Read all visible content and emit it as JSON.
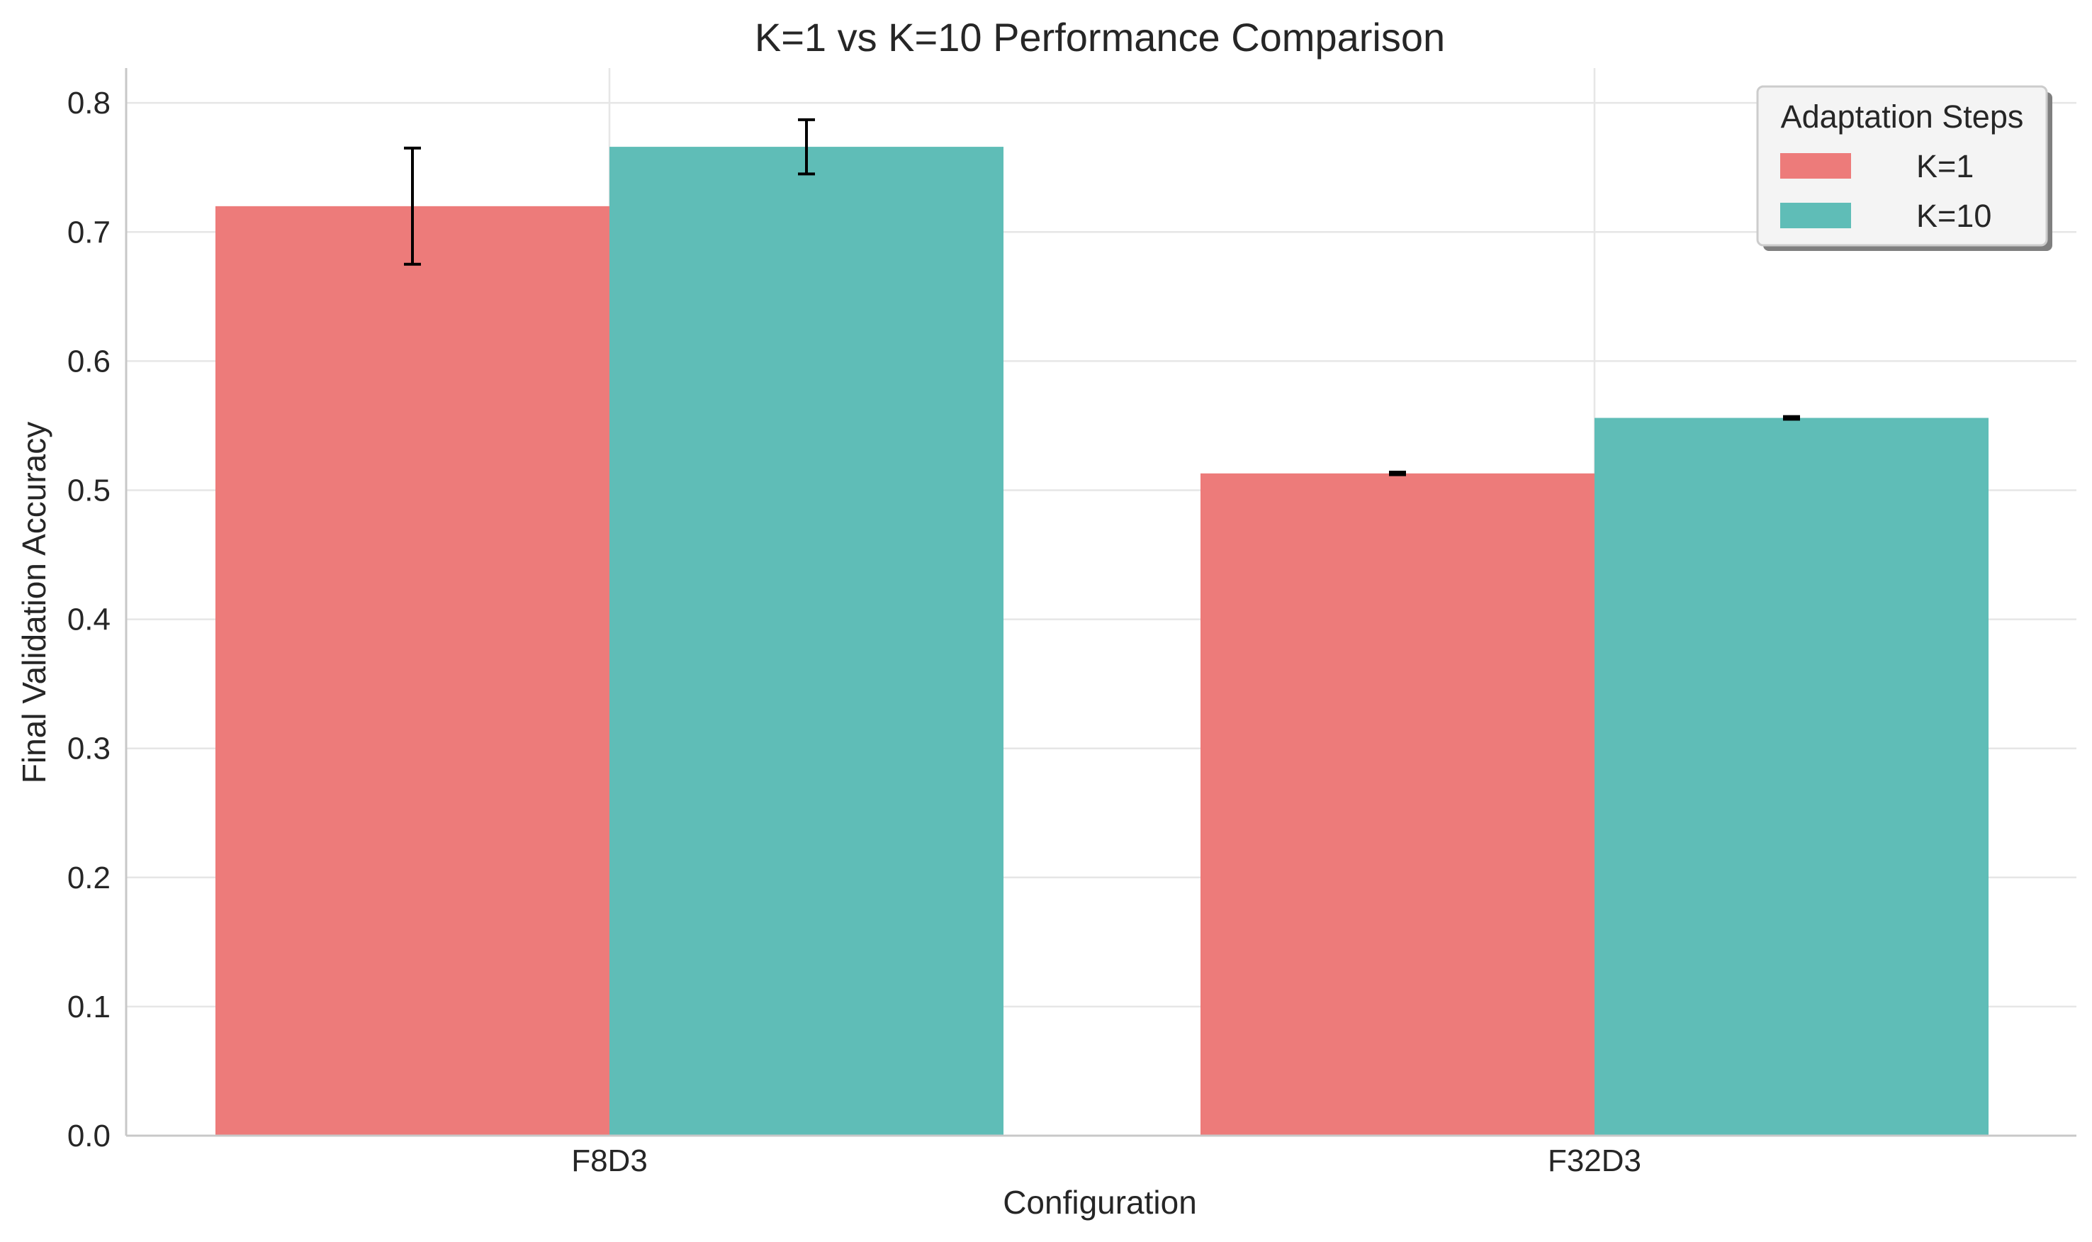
{
  "chart_data": {
    "type": "bar",
    "title": "K=1 vs K=10 Performance Comparison",
    "xlabel": "Configuration",
    "ylabel": "Final Validation Accuracy",
    "categories": [
      "F8D3",
      "F32D3"
    ],
    "series": [
      {
        "name": "K=1",
        "color": "#ED7B7A",
        "values": [
          0.72,
          0.513
        ],
        "errors": [
          0.045,
          0.001
        ]
      },
      {
        "name": "K=10",
        "color": "#5FBDB7",
        "values": [
          0.766,
          0.556
        ],
        "errors": [
          0.021,
          0.001
        ]
      }
    ],
    "ylim": [
      0.0,
      0.827
    ],
    "yticks": [
      "0.0",
      "0.1",
      "0.2",
      "0.3",
      "0.4",
      "0.5",
      "0.6",
      "0.7",
      "0.8"
    ],
    "grid": true,
    "legend": {
      "title": "Adaptation Steps",
      "position": "top-right"
    }
  }
}
